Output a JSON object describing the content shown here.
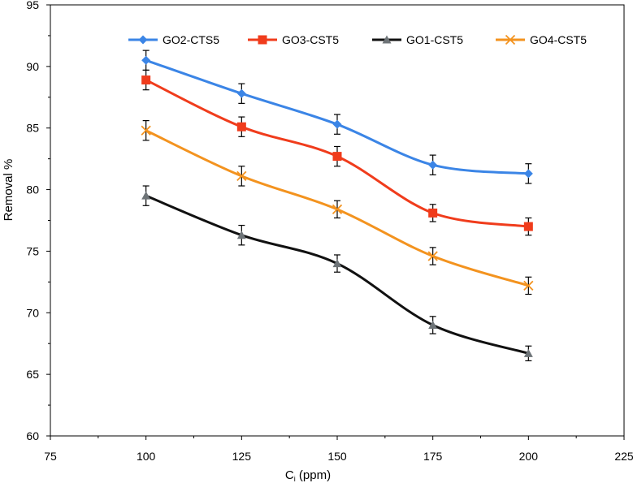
{
  "chart_data": {
    "type": "line",
    "title": "",
    "xlabel": "C",
    "xlabel_sub": "i",
    "xlabel_suffix": " (ppm)",
    "ylabel": "Removal %",
    "xlim": [
      75,
      225
    ],
    "ylim": [
      60,
      95
    ],
    "xticks": [
      75,
      100,
      125,
      150,
      175,
      200,
      225
    ],
    "yticks": [
      60,
      65,
      70,
      75,
      80,
      85,
      90,
      95
    ],
    "grid": false,
    "legend_position": "top",
    "x": [
      100,
      125,
      150,
      175,
      200
    ],
    "series": [
      {
        "name": "GO2-CTS5",
        "color": "#3b85e6",
        "marker": "diamond",
        "values": [
          90.5,
          87.8,
          85.3,
          82.0,
          81.3
        ],
        "error": [
          0.8,
          0.8,
          0.8,
          0.8,
          0.8
        ]
      },
      {
        "name": "GO3-CST5",
        "color": "#f03c1c",
        "marker": "square",
        "values": [
          88.9,
          85.1,
          82.7,
          78.1,
          77.0
        ],
        "error": [
          0.8,
          0.8,
          0.8,
          0.7,
          0.7
        ]
      },
      {
        "name": "GO1-CST5",
        "color": "#111111",
        "marker_color": "#6e7478",
        "marker": "triangle",
        "values": [
          79.5,
          76.3,
          74.0,
          69.0,
          66.7
        ],
        "error": [
          0.8,
          0.8,
          0.7,
          0.7,
          0.6
        ]
      },
      {
        "name": "GO4-CST5",
        "color": "#f3931f",
        "marker": "x",
        "values": [
          84.8,
          81.1,
          78.4,
          74.6,
          72.2
        ],
        "error": [
          0.8,
          0.8,
          0.7,
          0.7,
          0.7
        ]
      }
    ]
  }
}
